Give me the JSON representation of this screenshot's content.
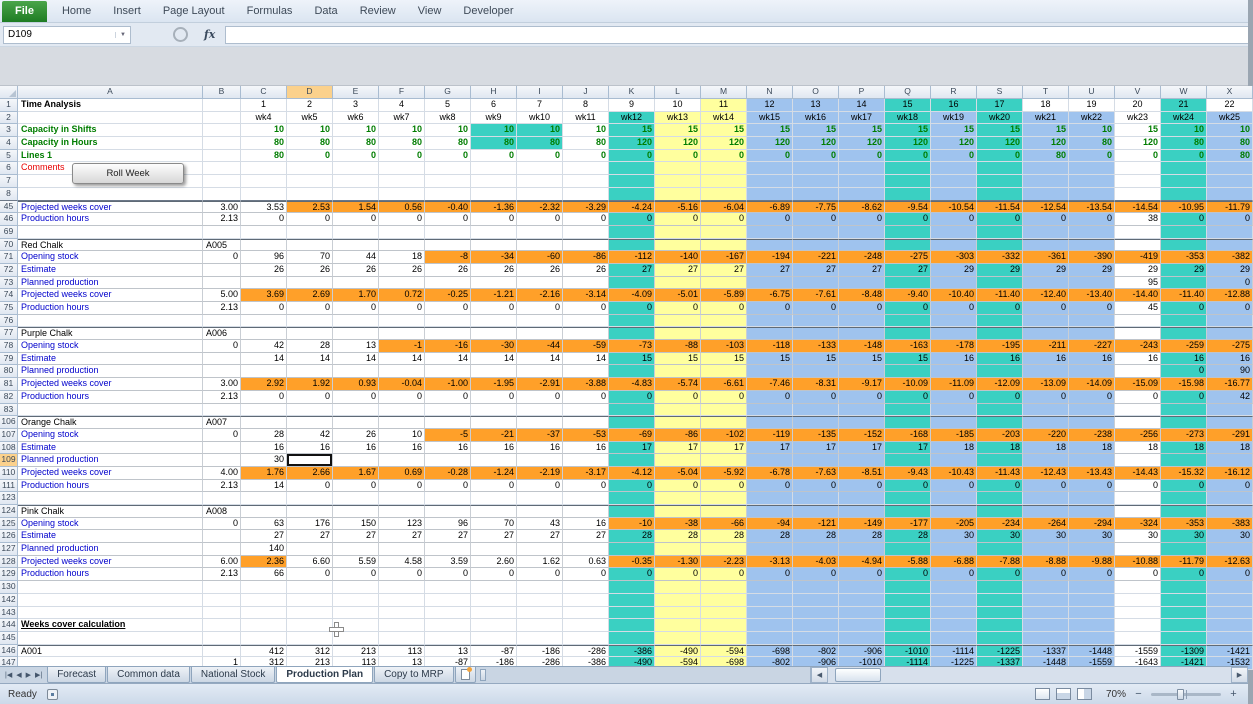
{
  "ribbon": {
    "tabs": [
      "File",
      "Home",
      "Insert",
      "Page Layout",
      "Formulas",
      "Data",
      "Review",
      "View",
      "Developer"
    ]
  },
  "formula_bar": {
    "name_box": "D109",
    "dropdown_icon": "▼",
    "fx_label": "fx",
    "formula_value": ""
  },
  "roll_week_button": {
    "label": "Roll Week"
  },
  "grid": {
    "columns": [
      "A",
      "B",
      "C",
      "D",
      "E",
      "F",
      "G",
      "H",
      "I",
      "J",
      "K",
      "L",
      "M",
      "N",
      "O",
      "P",
      "Q",
      "R",
      "S",
      "T",
      "U",
      "V",
      "W",
      "X"
    ],
    "row_header_width": 18,
    "col_a_width": 185,
    "col_b_width": 38,
    "data_col_width": 46,
    "selected": {
      "ref": "D109",
      "column": "D",
      "row": 109
    },
    "colors": {
      "orange": "#ffa029",
      "teal": "#3ad0c2",
      "yellow": "#ffff9e",
      "blue": "#9fc3ee"
    },
    "bands": [
      "",
      "",
      "",
      "",
      "",
      "",
      "",
      "",
      "teal",
      "yellow",
      "yellow",
      "blue",
      "blue",
      "blue",
      "teal",
      "blue",
      "teal",
      "blue",
      "blue",
      "",
      "teal",
      "blue"
    ],
    "bands_row1": [
      "",
      "",
      "",
      "",
      "",
      "",
      "",
      "",
      "",
      "",
      "yellow",
      "blue",
      "blue",
      "blue",
      "teal",
      "teal",
      "teal",
      "",
      "",
      "",
      "teal",
      ""
    ],
    "rows": [
      {
        "n": 1,
        "label": "Time Analysis",
        "lcls": "b",
        "align": "c",
        "r1": true,
        "vals": [
          "1",
          "2",
          "3",
          "4",
          "5",
          "6",
          "7",
          "8",
          "9",
          "10",
          "11",
          "12",
          "13",
          "14",
          "15",
          "16",
          "17",
          "18",
          "19",
          "20",
          "21",
          "22"
        ]
      },
      {
        "n": 2,
        "align": "c",
        "vals": [
          "wk4",
          "wk5",
          "wk6",
          "wk7",
          "wk8",
          "wk9",
          "wk10",
          "wk11",
          "wk12",
          "wk13",
          "wk14",
          "wk15",
          "wk16",
          "wk17",
          "wk18",
          "wk19",
          "wk20",
          "wk21",
          "wk22",
          "wk23",
          "wk24",
          "wk25"
        ]
      },
      {
        "n": 3,
        "label": "Capacity in Shifts",
        "lcls": "green",
        "tcls": "green",
        "extra": {
          "5": "teal",
          "6": "teal"
        },
        "vals": [
          "10",
          "10",
          "10",
          "10",
          "10",
          "10",
          "10",
          "10",
          "15",
          "15",
          "15",
          "15",
          "15",
          "15",
          "15",
          "15",
          "15",
          "15",
          "10",
          "15",
          "10",
          "10"
        ]
      },
      {
        "n": 4,
        "label": "Capacity in Hours",
        "lcls": "green",
        "tcls": "green",
        "extra": {
          "5": "teal",
          "6": "teal"
        },
        "vals": [
          "80",
          "80",
          "80",
          "80",
          "80",
          "80",
          "80",
          "80",
          "120",
          "120",
          "120",
          "120",
          "120",
          "120",
          "120",
          "120",
          "120",
          "120",
          "80",
          "120",
          "80",
          "80"
        ]
      },
      {
        "n": 5,
        "label": "Lines 1",
        "lcls": "green",
        "tcls": "green",
        "vals": [
          "80",
          "0",
          "0",
          "0",
          "0",
          "0",
          "0",
          "0",
          "0",
          "0",
          "0",
          "0",
          "0",
          "0",
          "0",
          "0",
          "0",
          "80",
          "0",
          "0",
          "0",
          "80"
        ]
      },
      {
        "n": 6,
        "label": "Comments",
        "lcls": "red",
        "vals": []
      },
      {
        "n": 7,
        "vals": []
      },
      {
        "n": 8,
        "cls": "frz",
        "vals": []
      },
      {
        "n": 45,
        "label": "Projected weeks cover",
        "lcls": "blue",
        "b": "3.00",
        "bt": true,
        "blk": true,
        "orange": {
          "from": 1
        },
        "vals": [
          "3.53",
          "2.53",
          "1.54",
          "0.56",
          "-0.40",
          "-1.36",
          "-2.32",
          "-3.29",
          "-4.24",
          "-5.16",
          "-6.04",
          "-6.89",
          "-7.75",
          "-8.62",
          "-9.54",
          "-10.54",
          "-11.54",
          "-12.54",
          "-13.54",
          "-14.54",
          "-10.95",
          "-11.79"
        ]
      },
      {
        "n": 46,
        "label": "Production hours",
        "lcls": "blue",
        "b": "2.13",
        "bb": true,
        "blk": true,
        "vals": [
          "0",
          "0",
          "0",
          "0",
          "0",
          "0",
          "0",
          "0",
          "0",
          "0",
          "0",
          "0",
          "0",
          "0",
          "0",
          "0",
          "0",
          "0",
          "0",
          "38",
          "0",
          "0"
        ]
      },
      {
        "n": 69,
        "vals": []
      },
      {
        "n": 70,
        "label": "Red Chalk",
        "b": "A005",
        "bt": true,
        "blk": true,
        "vals": []
      },
      {
        "n": 71,
        "label": "Opening stock",
        "lcls": "blue",
        "b": "0",
        "blk": true,
        "orange": {
          "from": 4
        },
        "vals": [
          "96",
          "70",
          "44",
          "18",
          "-8",
          "-34",
          "-60",
          "-86",
          "-112",
          "-140",
          "-167",
          "-194",
          "-221",
          "-248",
          "-275",
          "-303",
          "-332",
          "-361",
          "-390",
          "-419",
          "-353",
          "-382"
        ]
      },
      {
        "n": 72,
        "label": "Estimate",
        "lcls": "blue",
        "blk": true,
        "vals": [
          "26",
          "26",
          "26",
          "26",
          "26",
          "26",
          "26",
          "26",
          "27",
          "27",
          "27",
          "27",
          "27",
          "27",
          "27",
          "29",
          "29",
          "29",
          "29",
          "29",
          "29",
          "29"
        ]
      },
      {
        "n": 73,
        "label": "Planned production",
        "lcls": "blue",
        "blk": true,
        "vals": [
          "",
          "",
          "",
          "",
          "",
          "",
          "",
          "",
          "",
          "",
          "",
          "",
          "",
          "",
          "",
          "",
          "",
          "",
          "",
          "95",
          "",
          "0"
        ]
      },
      {
        "n": 74,
        "label": "Projected weeks cover",
        "lcls": "blue",
        "b": "5.00",
        "blk": true,
        "orange": {
          "from": 0
        },
        "vals": [
          "3.69",
          "2.69",
          "1.70",
          "0.72",
          "-0.25",
          "-1.21",
          "-2.16",
          "-3.14",
          "-4.09",
          "-5.01",
          "-5.89",
          "-6.75",
          "-7.61",
          "-8.48",
          "-9.40",
          "-10.40",
          "-11.40",
          "-12.40",
          "-13.40",
          "-14.40",
          "-11.40",
          "-12.88"
        ]
      },
      {
        "n": 75,
        "label": "Production hours",
        "lcls": "blue",
        "b": "2.13",
        "bb": true,
        "blk": true,
        "vals": [
          "0",
          "0",
          "0",
          "0",
          "0",
          "0",
          "0",
          "0",
          "0",
          "0",
          "0",
          "0",
          "0",
          "0",
          "0",
          "0",
          "0",
          "0",
          "0",
          "45",
          "0",
          "0"
        ]
      },
      {
        "n": 76,
        "vals": []
      },
      {
        "n": 77,
        "label": "Purple Chalk",
        "b": "A006",
        "bt": true,
        "blk": true,
        "vals": []
      },
      {
        "n": 78,
        "label": "Opening stock",
        "lcls": "blue",
        "b": "0",
        "blk": true,
        "orange": {
          "from": 3
        },
        "vals": [
          "42",
          "28",
          "13",
          "-1",
          "-16",
          "-30",
          "-44",
          "-59",
          "-73",
          "-88",
          "-103",
          "-118",
          "-133",
          "-148",
          "-163",
          "-178",
          "-195",
          "-211",
          "-227",
          "-243",
          "-259",
          "-275"
        ]
      },
      {
        "n": 79,
        "label": "Estimate",
        "lcls": "blue",
        "blk": true,
        "vals": [
          "14",
          "14",
          "14",
          "14",
          "14",
          "14",
          "14",
          "14",
          "15",
          "15",
          "15",
          "15",
          "15",
          "15",
          "15",
          "16",
          "16",
          "16",
          "16",
          "16",
          "16",
          "16"
        ]
      },
      {
        "n": 80,
        "label": "Planned production",
        "lcls": "blue",
        "blk": true,
        "vals": [
          "",
          "",
          "",
          "",
          "",
          "",
          "",
          "",
          "",
          "",
          "",
          "",
          "",
          "",
          "",
          "",
          "",
          "",
          "",
          "",
          "0",
          "90"
        ]
      },
      {
        "n": 81,
        "label": "Projected weeks cover",
        "lcls": "blue",
        "b": "3.00",
        "blk": true,
        "orange": {
          "from": 0
        },
        "vals": [
          "2.92",
          "1.92",
          "0.93",
          "-0.04",
          "-1.00",
          "-1.95",
          "-2.91",
          "-3.88",
          "-4.83",
          "-5.74",
          "-6.61",
          "-7.46",
          "-8.31",
          "-9.17",
          "-10.09",
          "-11.09",
          "-12.09",
          "-13.09",
          "-14.09",
          "-15.09",
          "-15.98",
          "-16.77"
        ]
      },
      {
        "n": 82,
        "label": "Production hours",
        "lcls": "blue",
        "b": "2.13",
        "bb": true,
        "blk": true,
        "vals": [
          "0",
          "0",
          "0",
          "0",
          "0",
          "0",
          "0",
          "0",
          "0",
          "0",
          "0",
          "0",
          "0",
          "0",
          "0",
          "0",
          "0",
          "0",
          "0",
          "0",
          "0",
          "42"
        ]
      },
      {
        "n": 83,
        "vals": []
      },
      {
        "n": 106,
        "label": "Orange Chalk",
        "b": "A007",
        "bt": true,
        "blk": true,
        "vals": []
      },
      {
        "n": 107,
        "label": "Opening stock",
        "lcls": "blue",
        "b": "0",
        "blk": true,
        "orange": {
          "from": 4
        },
        "vals": [
          "28",
          "42",
          "26",
          "10",
          "-5",
          "-21",
          "-37",
          "-53",
          "-69",
          "-86",
          "-102",
          "-119",
          "-135",
          "-152",
          "-168",
          "-185",
          "-203",
          "-220",
          "-238",
          "-256",
          "-273",
          "-291"
        ]
      },
      {
        "n": 108,
        "label": "Estimate",
        "lcls": "blue",
        "blk": true,
        "vals": [
          "16",
          "16",
          "16",
          "16",
          "16",
          "16",
          "16",
          "16",
          "17",
          "17",
          "17",
          "17",
          "17",
          "17",
          "17",
          "18",
          "18",
          "18",
          "18",
          "18",
          "18",
          "18"
        ]
      },
      {
        "n": 109,
        "label": "Planned production",
        "lcls": "blue",
        "blk": true,
        "vals": [
          "30",
          "",
          "",
          "",
          "",
          "",
          "",
          "",
          "",
          "",
          "",
          "",
          "",
          "",
          "",
          "",
          "",
          "",
          "",
          "",
          "",
          ""
        ]
      },
      {
        "n": 110,
        "label": "Projected weeks cover",
        "lcls": "blue",
        "b": "4.00",
        "blk": true,
        "orange": {
          "from": 0
        },
        "vals": [
          "1.76",
          "2.66",
          "1.67",
          "0.69",
          "-0.28",
          "-1.24",
          "-2.19",
          "-3.17",
          "-4.12",
          "-5.04",
          "-5.92",
          "-6.78",
          "-7.63",
          "-8.51",
          "-9.43",
          "-10.43",
          "-11.43",
          "-12.43",
          "-13.43",
          "-14.43",
          "-15.32",
          "-16.12"
        ]
      },
      {
        "n": 111,
        "label": "Production hours",
        "lcls": "blue",
        "b": "2.13",
        "bb": true,
        "blk": true,
        "vals": [
          "14",
          "0",
          "0",
          "0",
          "0",
          "0",
          "0",
          "0",
          "0",
          "0",
          "0",
          "0",
          "0",
          "0",
          "0",
          "0",
          "0",
          "0",
          "0",
          "0",
          "0",
          "0"
        ]
      },
      {
        "n": 123,
        "vals": []
      },
      {
        "n": 124,
        "label": "Pink Chalk",
        "b": "A008",
        "bt": true,
        "blk": true,
        "vals": []
      },
      {
        "n": 125,
        "label": "Opening stock",
        "lcls": "blue",
        "b": "0",
        "blk": true,
        "orange": {
          "from": 8
        },
        "vals": [
          "63",
          "176",
          "150",
          "123",
          "96",
          "70",
          "43",
          "16",
          "-10",
          "-38",
          "-66",
          "-94",
          "-121",
          "-149",
          "-177",
          "-205",
          "-234",
          "-264",
          "-294",
          "-324",
          "-353",
          "-383"
        ]
      },
      {
        "n": 126,
        "label": "Estimate",
        "lcls": "blue",
        "blk": true,
        "vals": [
          "27",
          "27",
          "27",
          "27",
          "27",
          "27",
          "27",
          "27",
          "28",
          "28",
          "28",
          "28",
          "28",
          "28",
          "28",
          "30",
          "30",
          "30",
          "30",
          "30",
          "30",
          "30"
        ]
      },
      {
        "n": 127,
        "label": "Planned production",
        "lcls": "blue",
        "blk": true,
        "vals": [
          "140",
          "",
          "",
          "",
          "",
          "",
          "",
          "",
          "",
          "",
          "",
          "",
          "",
          "",
          "",
          "",
          "",
          "",
          "",
          "",
          "",
          ""
        ]
      },
      {
        "n": 128,
        "label": "Projected weeks cover",
        "lcls": "blue",
        "b": "6.00",
        "blk": true,
        "orange": {
          "from": 8,
          "also": [
            0
          ]
        },
        "vals": [
          "2.36",
          "6.60",
          "5.59",
          "4.58",
          "3.59",
          "2.60",
          "1.62",
          "0.63",
          "-0.35",
          "-1.30",
          "-2.23",
          "-3.13",
          "-4.03",
          "-4.94",
          "-5.88",
          "-6.88",
          "-7.88",
          "-8.88",
          "-9.88",
          "-10.88",
          "-11.79",
          "-12.63"
        ]
      },
      {
        "n": 129,
        "label": "Production hours",
        "lcls": "blue",
        "b": "2.13",
        "bb": true,
        "blk": true,
        "vals": [
          "66",
          "0",
          "0",
          "0",
          "0",
          "0",
          "0",
          "0",
          "0",
          "0",
          "0",
          "0",
          "0",
          "0",
          "0",
          "0",
          "0",
          "0",
          "0",
          "0",
          "0",
          "0"
        ]
      },
      {
        "n": 130,
        "vals": []
      },
      {
        "n": 142,
        "vals": []
      },
      {
        "n": 143,
        "vals": []
      },
      {
        "n": 144,
        "label": "Weeks cover calculation",
        "lcls": "ul",
        "vals": []
      },
      {
        "n": 145,
        "vals": []
      },
      {
        "n": 146,
        "label": "A001",
        "bt": true,
        "vals": [
          "412",
          "312",
          "213",
          "113",
          "13",
          "-87",
          "-186",
          "-286",
          "-386",
          "-490",
          "-594",
          "-698",
          "-802",
          "-906",
          "-1010",
          "-1114",
          "-1225",
          "-1337",
          "-1448",
          "-1559",
          "-1309",
          "-1421"
        ]
      },
      {
        "n": 147,
        "b": "1",
        "vals": [
          "312",
          "213",
          "113",
          "13",
          "-87",
          "-186",
          "-286",
          "-386",
          "-490",
          "-594",
          "-698",
          "-802",
          "-906",
          "-1010",
          "-1114",
          "-1225",
          "-1337",
          "-1448",
          "-1559",
          "-1643",
          "-1421",
          "-1532"
        ]
      }
    ]
  },
  "sheet_tabs": {
    "nav": [
      "|◀",
      "◀",
      "▶",
      "▶|"
    ],
    "nav_names": [
      "sheet-nav-first",
      "sheet-nav-prev",
      "sheet-nav-next",
      "sheet-nav-last"
    ],
    "tabs": [
      {
        "label": "Forecast"
      },
      {
        "label": "Common data"
      },
      {
        "label": "National Stock"
      },
      {
        "label": "Production Plan",
        "active": true
      },
      {
        "label": "Copy to MRP"
      }
    ],
    "scroll_left": "◀",
    "scroll_right": "▶"
  },
  "status_bar": {
    "mode": "Ready",
    "zoom": "70%",
    "zoom_out": "−",
    "zoom_in": "+"
  }
}
